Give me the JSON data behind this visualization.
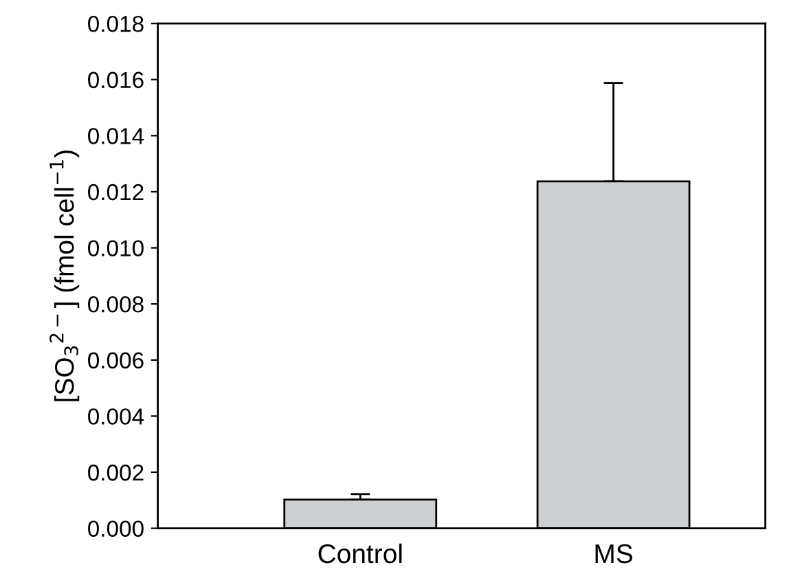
{
  "chart_data": {
    "type": "bar",
    "ylabel": "[SO$_{3}$$^{2−}$] (fmol cell$^{−1}$)",
    "categories": [
      "Control",
      "MS"
    ],
    "values": [
      0.00102,
      0.01237
    ],
    "errors": [
      [
        0.00102,
        0.00122
      ],
      [
        0.01237,
        0.01588
      ]
    ],
    "color": "#cdd0d3",
    "ylim": [
      0,
      0.018
    ],
    "yticks": [
      {
        "value": 0,
        "label": "0.000"
      },
      {
        "value": 0.002,
        "label": "0.002"
      },
      {
        "value": 0.004,
        "label": "0.004"
      },
      {
        "value": 0.006,
        "label": "0.006"
      },
      {
        "value": 0.008,
        "label": "0.008"
      },
      {
        "value": 0.01,
        "label": "0.010"
      },
      {
        "value": 0.012,
        "label": "0.012"
      },
      {
        "value": 0.014,
        "label": "0.014"
      },
      {
        "value": 0.016,
        "label": "0.016"
      },
      {
        "value": 0.018,
        "label": "0.018"
      }
    ],
    "grid": false,
    "legend": false
  }
}
